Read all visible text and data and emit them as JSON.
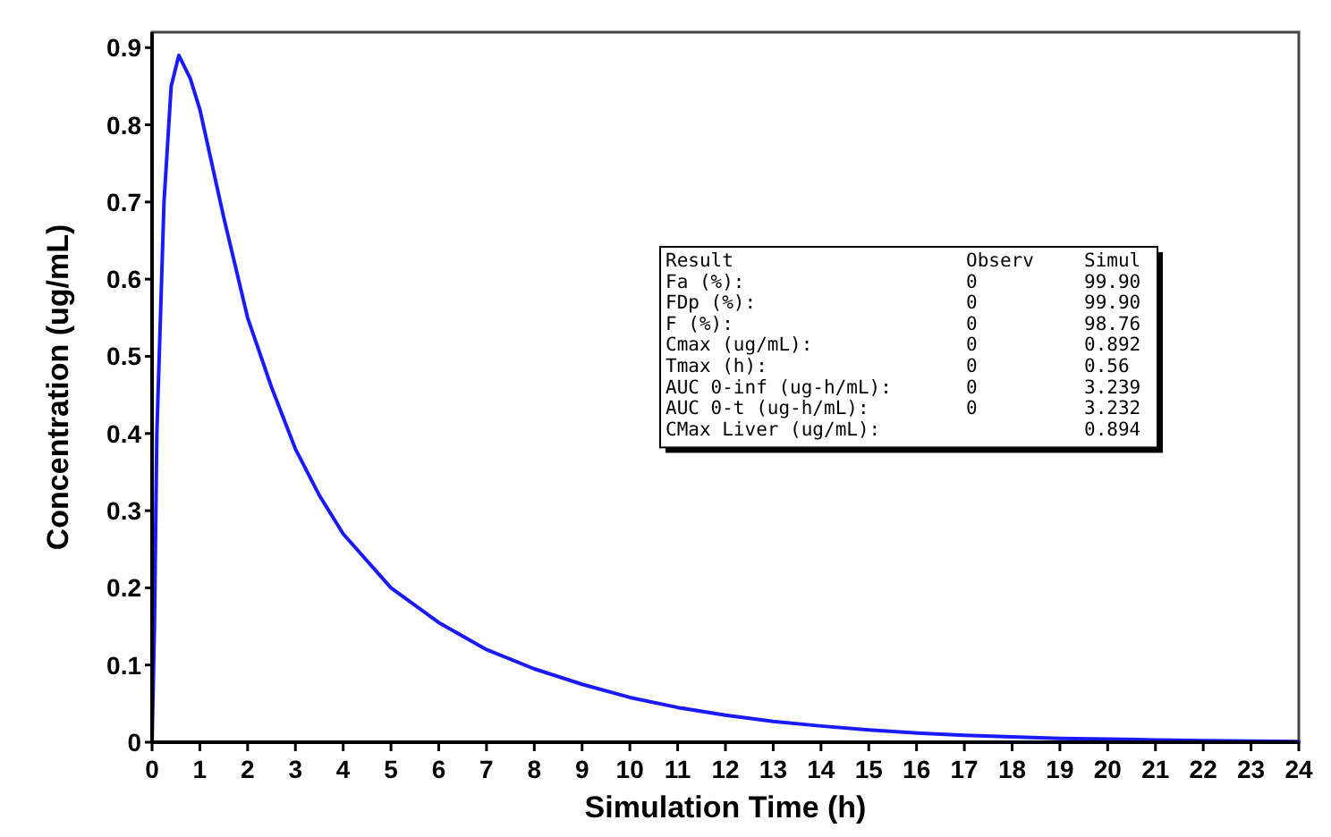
{
  "chart_data": {
    "type": "line",
    "xlabel": "Simulation Time (h)",
    "ylabel": "Concentration (ug/mL)",
    "xlim": [
      0,
      24
    ],
    "ylim": [
      0,
      0.92
    ],
    "xticks": [
      0,
      1,
      2,
      3,
      4,
      5,
      6,
      7,
      8,
      9,
      10,
      11,
      12,
      13,
      14,
      15,
      16,
      17,
      18,
      19,
      20,
      21,
      22,
      23,
      24
    ],
    "yticks": [
      0,
      0.1,
      0.2,
      0.3,
      0.4,
      0.5,
      0.6,
      0.7,
      0.8,
      0.9
    ],
    "marker": "none",
    "line_style": "solid",
    "series": [
      {
        "color": "#1a1aff",
        "x": [
          0,
          0.05,
          0.1,
          0.15,
          0.25,
          0.4,
          0.56,
          0.8,
          1,
          1.5,
          2,
          2.5,
          3,
          3.5,
          4,
          5,
          6,
          7,
          8,
          9,
          10,
          11,
          12,
          13,
          14,
          15,
          16,
          17,
          18,
          19,
          20,
          21,
          22,
          24
        ],
        "values": [
          0,
          0.15,
          0.4,
          0.5,
          0.7,
          0.85,
          0.89,
          0.86,
          0.82,
          0.68,
          0.55,
          0.46,
          0.38,
          0.32,
          0.27,
          0.2,
          0.155,
          0.12,
          0.095,
          0.075,
          0.058,
          0.045,
          0.035,
          0.027,
          0.021,
          0.016,
          0.012,
          0.009,
          0.007,
          0.005,
          0.004,
          0.003,
          0.002,
          0.001
        ]
      }
    ],
    "annotations": [
      "Result",
      "Observ",
      "Simul",
      "Fa (%):",
      "0",
      "99.90",
      "FDp (%):",
      "0",
      "99.90",
      "F (%):",
      "0",
      "98.76",
      "Cmax (ug/mL):",
      "0",
      "0.892",
      "Tmax (h):",
      "0",
      "0.56",
      "AUC 0-inf (ug-h/mL):",
      "0",
      "3.239",
      "AUC 0-t (ug-h/mL):",
      "0",
      "3.232",
      "CMax Liver (ug/mL):",
      "0.894"
    ]
  }
}
